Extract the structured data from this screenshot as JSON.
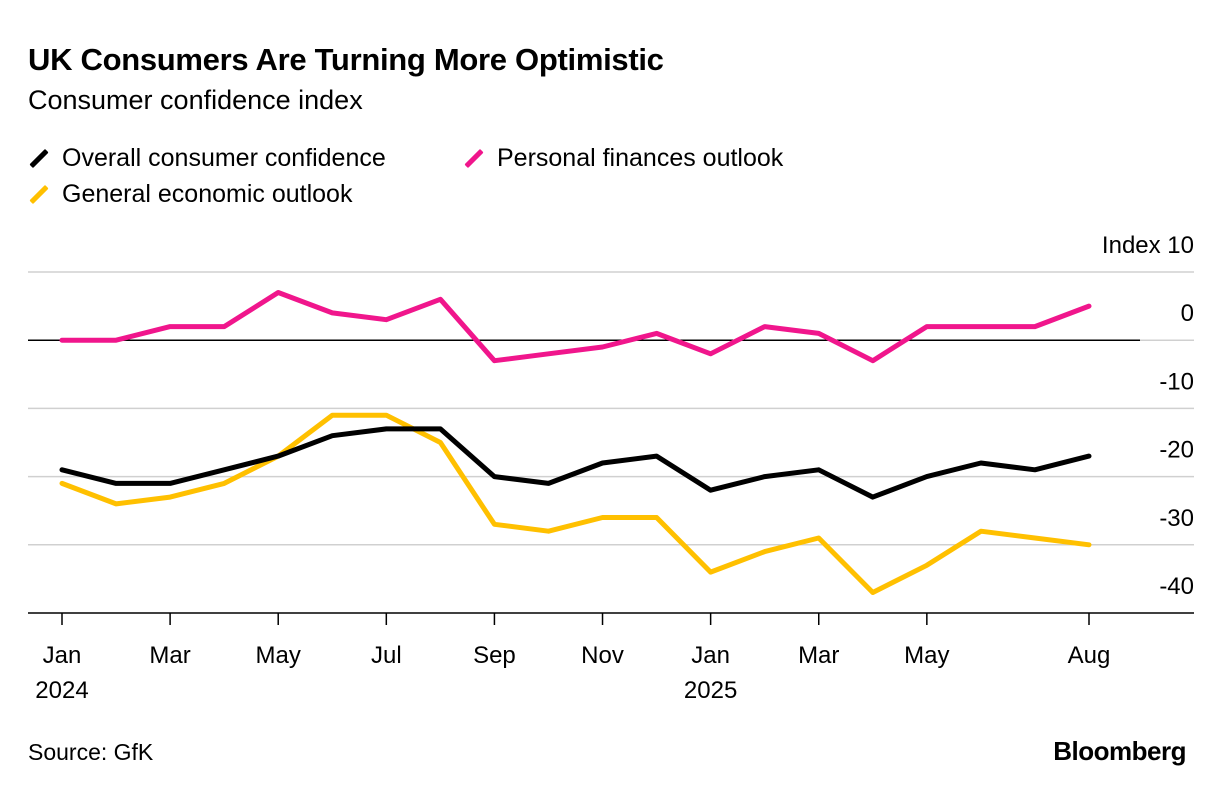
{
  "chart_data": {
    "type": "line",
    "title": "UK Consumers Are Turning More Optimistic",
    "subtitle": "Consumer confidence index",
    "ylabel_unit": "Index",
    "ylim": [
      -40,
      10
    ],
    "yticks": [
      10,
      0,
      -10,
      -20,
      -30,
      -40
    ],
    "ytick_labels": [
      "Index 10",
      "0",
      "-10",
      "-20",
      "-30",
      "-40"
    ],
    "x": [
      "2024-01",
      "2024-02",
      "2024-03",
      "2024-04",
      "2024-05",
      "2024-06",
      "2024-07",
      "2024-08",
      "2024-09",
      "2024-10",
      "2024-11",
      "2024-12",
      "2025-01",
      "2025-02",
      "2025-03",
      "2025-04",
      "2025-05",
      "2025-06",
      "2025-07",
      "2025-08"
    ],
    "xtick_labels": [
      {
        "month": "2024-01",
        "label": "Jan",
        "year": "2024"
      },
      {
        "month": "2024-03",
        "label": "Mar",
        "year": ""
      },
      {
        "month": "2024-05",
        "label": "May",
        "year": ""
      },
      {
        "month": "2024-07",
        "label": "Jul",
        "year": ""
      },
      {
        "month": "2024-09",
        "label": "Sep",
        "year": ""
      },
      {
        "month": "2024-11",
        "label": "Nov",
        "year": ""
      },
      {
        "month": "2025-01",
        "label": "Jan",
        "year": "2025"
      },
      {
        "month": "2025-03",
        "label": "Mar",
        "year": ""
      },
      {
        "month": "2025-05",
        "label": "May",
        "year": ""
      },
      {
        "month": "2025-08",
        "label": "Aug",
        "year": ""
      }
    ],
    "grid": true,
    "legend_position": "top-left",
    "series": [
      {
        "name": "Personal finances outlook",
        "color": "#f0168c",
        "values": [
          0,
          0,
          2,
          2,
          7,
          4,
          3,
          6,
          -3,
          -2,
          -1,
          1,
          -2,
          2,
          1,
          -3,
          2,
          2,
          2,
          5
        ]
      },
      {
        "name": "Overall consumer confidence",
        "color": "#000000",
        "values": [
          -19,
          -21,
          -21,
          -19,
          -17,
          -14,
          -13,
          -13,
          -20,
          -21,
          -18,
          -17,
          -22,
          -20,
          -19,
          -23,
          -20,
          -18,
          -19,
          -17
        ]
      },
      {
        "name": "General economic outlook",
        "color": "#ffc000",
        "values": [
          -21,
          -24,
          -23,
          -21,
          -17,
          -11,
          -11,
          -15,
          -27,
          -28,
          -26,
          -26,
          -34,
          -31,
          -29,
          -37,
          -33,
          -28,
          -29,
          -30
        ]
      }
    ]
  },
  "legend": [
    {
      "label": "Overall consumer confidence",
      "color": "#000000"
    },
    {
      "label": "Personal finances outlook",
      "color": "#f0168c"
    },
    {
      "label": "General economic outlook",
      "color": "#ffc000"
    }
  ],
  "footer": {
    "source": "Source: GfK",
    "logo": "Bloomberg"
  }
}
